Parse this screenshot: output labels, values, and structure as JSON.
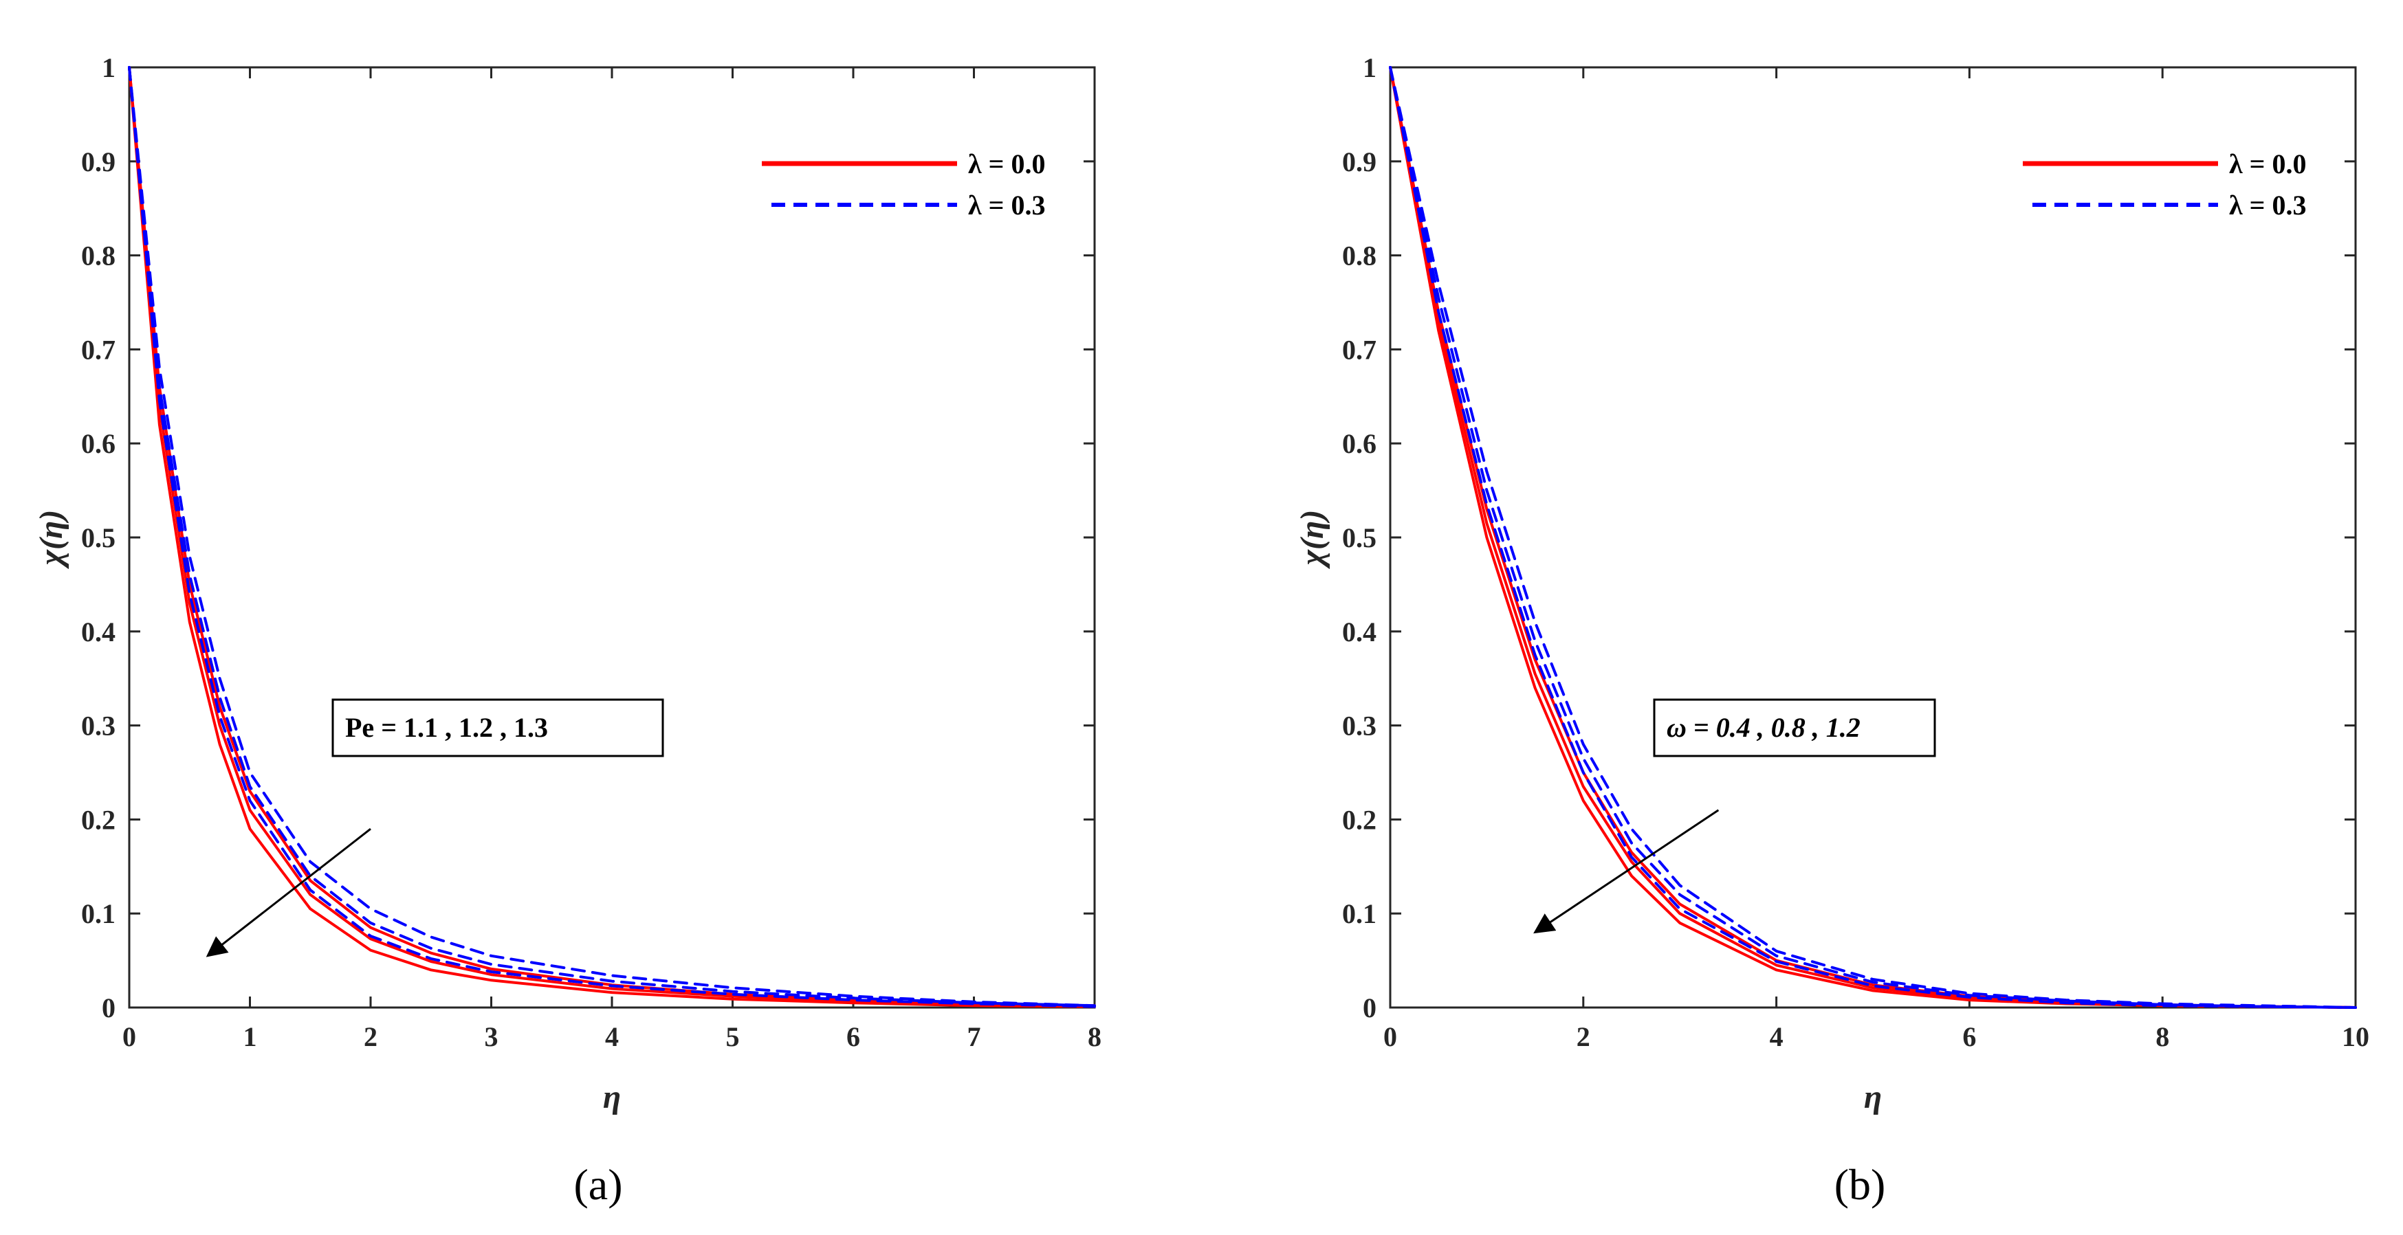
{
  "chart_data": [
    {
      "type": "line",
      "panel": "a",
      "caption": "(a)",
      "xlabel": "η",
      "ylabel": "χ(η)",
      "xlim": [
        0,
        8
      ],
      "ylim": [
        0,
        1
      ],
      "xticks": [
        "0",
        "1",
        "2",
        "3",
        "4",
        "5",
        "6",
        "7",
        "8"
      ],
      "yticks": [
        "0",
        "0.1",
        "0.2",
        "0.3",
        "0.4",
        "0.5",
        "0.6",
        "0.7",
        "0.8",
        "0.9",
        "1"
      ],
      "legend": {
        "position": "top-right",
        "entries": [
          "λ = 0.0",
          "λ = 0.3"
        ]
      },
      "annotation": {
        "text": "Pe = 1.1 , 1.2 , 1.3",
        "arrow_from": [
          2.0,
          0.19
        ],
        "arrow_to": [
          0.65,
          0.055
        ]
      },
      "x": [
        0,
        0.25,
        0.5,
        0.75,
        1,
        1.5,
        2,
        2.5,
        3,
        4,
        5,
        6,
        7,
        8
      ],
      "series": [
        {
          "name": "λ = 0.0, Pe = 1.1",
          "values": [
            1,
            0.66,
            0.45,
            0.32,
            0.23,
            0.135,
            0.085,
            0.058,
            0.041,
            0.024,
            0.014,
            0.008,
            0.004,
            0.002
          ]
        },
        {
          "name": "λ = 0.0, Pe = 1.2",
          "values": [
            1,
            0.64,
            0.43,
            0.3,
            0.21,
            0.12,
            0.073,
            0.049,
            0.035,
            0.02,
            0.012,
            0.007,
            0.003,
            0.001
          ]
        },
        {
          "name": "λ = 0.0, Pe = 1.3",
          "values": [
            1,
            0.62,
            0.41,
            0.28,
            0.19,
            0.105,
            0.061,
            0.04,
            0.029,
            0.016,
            0.009,
            0.005,
            0.002,
            0.001
          ]
        },
        {
          "name": "λ = 0.3, Pe = 1.1",
          "values": [
            1,
            0.68,
            0.48,
            0.35,
            0.25,
            0.155,
            0.105,
            0.075,
            0.055,
            0.034,
            0.021,
            0.012,
            0.006,
            0.002
          ]
        },
        {
          "name": "λ = 0.3, Pe = 1.2",
          "values": [
            1,
            0.66,
            0.46,
            0.33,
            0.235,
            0.14,
            0.09,
            0.063,
            0.046,
            0.028,
            0.017,
            0.01,
            0.005,
            0.002
          ]
        },
        {
          "name": "λ = 0.3, Pe = 1.3",
          "values": [
            1,
            0.645,
            0.44,
            0.31,
            0.22,
            0.125,
            0.076,
            0.052,
            0.038,
            0.023,
            0.014,
            0.008,
            0.004,
            0.001
          ]
        }
      ],
      "series_style": [
        "solid",
        "solid",
        "solid",
        "dashed",
        "dashed",
        "dashed"
      ]
    },
    {
      "type": "line",
      "panel": "b",
      "caption": "(b)",
      "xlabel": "η",
      "ylabel": "χ(η)",
      "xlim": [
        0,
        10
      ],
      "ylim": [
        0,
        1
      ],
      "xticks": [
        "0",
        "2",
        "4",
        "6",
        "8",
        "10"
      ],
      "yticks": [
        "0",
        "0.1",
        "0.2",
        "0.3",
        "0.4",
        "0.5",
        "0.6",
        "0.7",
        "0.8",
        "0.9",
        "1"
      ],
      "legend": {
        "position": "top-right",
        "entries": [
          "λ = 0.0",
          "λ = 0.3"
        ]
      },
      "annotation": {
        "text": "ω = 0.4 , 0.8 , 1.2",
        "arrow_from": [
          3.4,
          0.21
        ],
        "arrow_to": [
          1.5,
          0.08
        ]
      },
      "x": [
        0,
        0.5,
        1,
        1.5,
        2,
        2.5,
        3,
        4,
        5,
        6,
        7,
        8,
        9,
        10
      ],
      "series": [
        {
          "name": "λ = 0.0, ω = 0.4",
          "values": [
            1,
            0.74,
            0.53,
            0.37,
            0.25,
            0.165,
            0.11,
            0.05,
            0.024,
            0.012,
            0.006,
            0.003,
            0.001,
            0
          ]
        },
        {
          "name": "λ = 0.0, ω = 0.8",
          "values": [
            1,
            0.73,
            0.515,
            0.355,
            0.235,
            0.155,
            0.1,
            0.045,
            0.021,
            0.01,
            0.005,
            0.002,
            0.001,
            0
          ]
        },
        {
          "name": "λ = 0.0, ω = 1.2",
          "values": [
            1,
            0.72,
            0.5,
            0.34,
            0.22,
            0.14,
            0.09,
            0.04,
            0.018,
            0.008,
            0.004,
            0.002,
            0.001,
            0
          ]
        },
        {
          "name": "λ = 0.3, ω = 0.4",
          "values": [
            1,
            0.77,
            0.57,
            0.41,
            0.28,
            0.19,
            0.13,
            0.06,
            0.03,
            0.015,
            0.008,
            0.004,
            0.002,
            0
          ]
        },
        {
          "name": "λ = 0.3, ω = 0.8",
          "values": [
            1,
            0.755,
            0.55,
            0.39,
            0.265,
            0.175,
            0.12,
            0.055,
            0.027,
            0.013,
            0.007,
            0.003,
            0.001,
            0
          ]
        },
        {
          "name": "λ = 0.3, ω = 1.2",
          "values": [
            1,
            0.74,
            0.535,
            0.375,
            0.25,
            0.16,
            0.105,
            0.049,
            0.023,
            0.011,
            0.005,
            0.002,
            0.001,
            0
          ]
        }
      ],
      "series_style": [
        "solid",
        "solid",
        "solid",
        "dashed",
        "dashed",
        "dashed"
      ]
    }
  ],
  "colors": {
    "solid": "#ff0000",
    "dashed": "#0000ff",
    "axis": "#262626"
  }
}
